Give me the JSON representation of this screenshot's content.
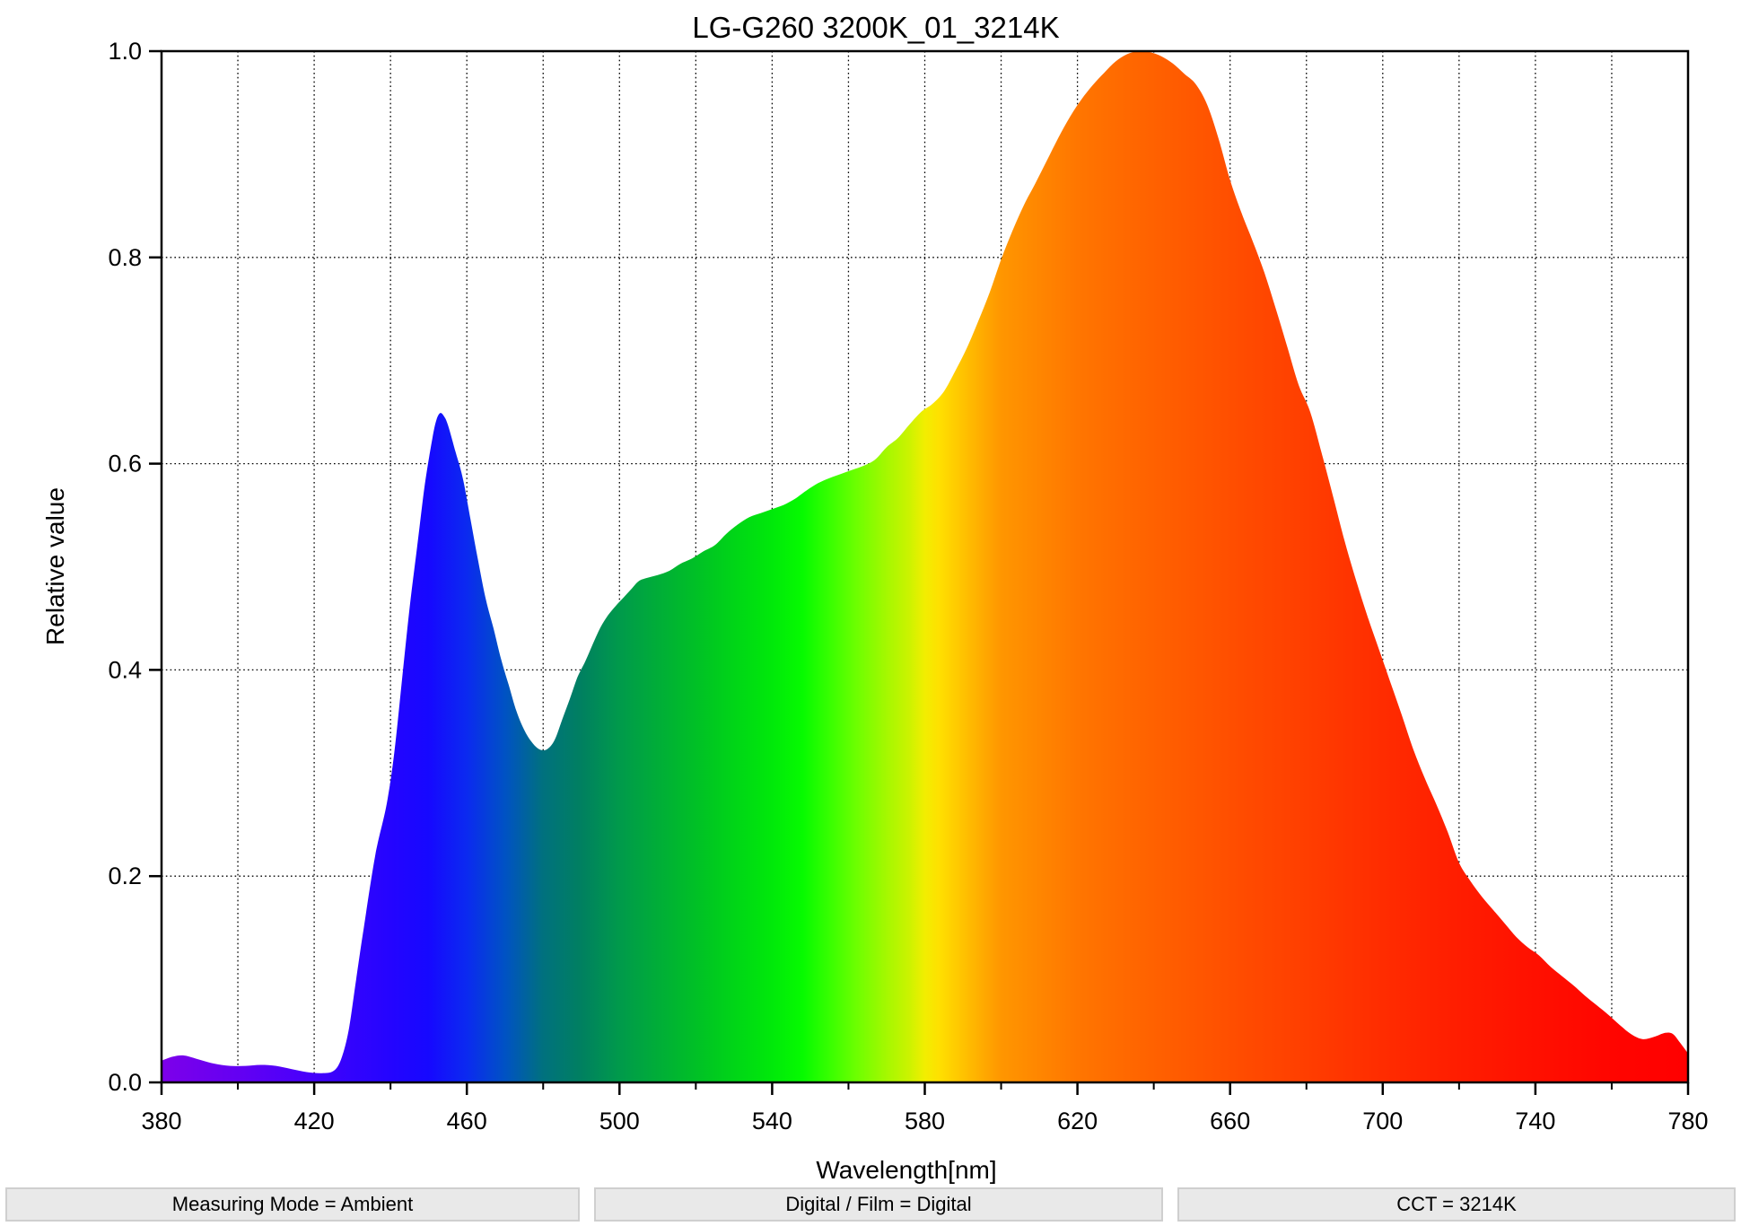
{
  "title": "LG-G260 3200K_01_3214K",
  "status_bars": [
    "Measuring Mode = Ambient",
    "Digital / Film = Digital",
    "CCT = 3214K"
  ],
  "chart_data": {
    "type": "area",
    "title": "LG-G260 3200K_01_3214K",
    "xlabel": "Wavelength[nm]",
    "ylabel": "Relative value",
    "xlim": [
      380,
      780
    ],
    "ylim": [
      0.0,
      1.0
    ],
    "x_major_ticks": [
      380,
      420,
      460,
      500,
      540,
      580,
      620,
      660,
      700,
      740,
      780
    ],
    "x_tick_labels": [
      "380",
      "420",
      "460",
      "500",
      "540",
      "580",
      "620",
      "660",
      "700",
      "740",
      "780"
    ],
    "x_minor_step": 20,
    "y_ticks": [
      0.0,
      0.2,
      0.4,
      0.6,
      0.8,
      1.0
    ],
    "y_tick_labels": [
      "0.0",
      "0.2",
      "0.4",
      "0.6",
      "0.8",
      "1.0"
    ],
    "grid": {
      "x_step": 20,
      "y_step": 0.2,
      "style": "dotted",
      "color": "#000000"
    },
    "legend": "none",
    "points": [
      [
        380,
        0.021
      ],
      [
        383,
        0.025
      ],
      [
        386,
        0.026
      ],
      [
        390,
        0.022
      ],
      [
        394,
        0.018
      ],
      [
        398,
        0.016
      ],
      [
        402,
        0.016
      ],
      [
        406,
        0.017
      ],
      [
        410,
        0.016
      ],
      [
        414,
        0.013
      ],
      [
        418,
        0.01
      ],
      [
        422,
        0.009
      ],
      [
        425,
        0.011
      ],
      [
        427,
        0.022
      ],
      [
        429,
        0.05
      ],
      [
        431,
        0.1
      ],
      [
        433,
        0.15
      ],
      [
        436,
        0.22
      ],
      [
        439,
        0.27
      ],
      [
        441,
        0.32
      ],
      [
        443,
        0.39
      ],
      [
        445,
        0.46
      ],
      [
        447,
        0.52
      ],
      [
        449,
        0.58
      ],
      [
        451,
        0.625
      ],
      [
        452,
        0.642
      ],
      [
        453,
        0.649
      ],
      [
        454,
        0.646
      ],
      [
        455,
        0.638
      ],
      [
        457,
        0.612
      ],
      [
        459,
        0.585
      ],
      [
        461,
        0.545
      ],
      [
        463,
        0.505
      ],
      [
        465,
        0.468
      ],
      [
        467,
        0.44
      ],
      [
        469,
        0.41
      ],
      [
        471,
        0.385
      ],
      [
        473,
        0.36
      ],
      [
        475,
        0.342
      ],
      [
        477,
        0.33
      ],
      [
        479,
        0.323
      ],
      [
        481,
        0.323
      ],
      [
        483,
        0.332
      ],
      [
        485,
        0.352
      ],
      [
        487,
        0.372
      ],
      [
        489,
        0.393
      ],
      [
        491,
        0.408
      ],
      [
        493,
        0.425
      ],
      [
        495,
        0.441
      ],
      [
        497,
        0.453
      ],
      [
        499,
        0.462
      ],
      [
        501,
        0.47
      ],
      [
        503,
        0.478
      ],
      [
        505,
        0.486
      ],
      [
        507,
        0.489
      ],
      [
        510,
        0.492
      ],
      [
        513,
        0.496
      ],
      [
        516,
        0.503
      ],
      [
        519,
        0.508
      ],
      [
        522,
        0.515
      ],
      [
        525,
        0.521
      ],
      [
        528,
        0.532
      ],
      [
        531,
        0.541
      ],
      [
        534,
        0.548
      ],
      [
        537,
        0.552
      ],
      [
        540,
        0.556
      ],
      [
        543,
        0.56
      ],
      [
        546,
        0.566
      ],
      [
        549,
        0.574
      ],
      [
        552,
        0.581
      ],
      [
        555,
        0.586
      ],
      [
        558,
        0.59
      ],
      [
        561,
        0.594
      ],
      [
        564,
        0.598
      ],
      [
        567,
        0.604
      ],
      [
        570,
        0.616
      ],
      [
        573,
        0.625
      ],
      [
        576,
        0.638
      ],
      [
        579,
        0.65
      ],
      [
        582,
        0.658
      ],
      [
        585,
        0.67
      ],
      [
        588,
        0.69
      ],
      [
        591,
        0.712
      ],
      [
        594,
        0.738
      ],
      [
        597,
        0.766
      ],
      [
        600,
        0.798
      ],
      [
        603,
        0.826
      ],
      [
        606,
        0.851
      ],
      [
        609,
        0.872
      ],
      [
        612,
        0.894
      ],
      [
        615,
        0.916
      ],
      [
        618,
        0.936
      ],
      [
        621,
        0.953
      ],
      [
        624,
        0.967
      ],
      [
        627,
        0.979
      ],
      [
        630,
        0.99
      ],
      [
        633,
        0.997
      ],
      [
        636,
        1.0
      ],
      [
        639,
        0.999
      ],
      [
        642,
        0.995
      ],
      [
        645,
        0.988
      ],
      [
        648,
        0.978
      ],
      [
        651,
        0.968
      ],
      [
        654,
        0.948
      ],
      [
        657,
        0.915
      ],
      [
        660,
        0.875
      ],
      [
        663,
        0.843
      ],
      [
        666,
        0.815
      ],
      [
        669,
        0.785
      ],
      [
        672,
        0.75
      ],
      [
        675,
        0.713
      ],
      [
        678,
        0.676
      ],
      [
        681,
        0.65
      ],
      [
        684,
        0.61
      ],
      [
        687,
        0.568
      ],
      [
        690,
        0.525
      ],
      [
        693,
        0.487
      ],
      [
        696,
        0.452
      ],
      [
        699,
        0.42
      ],
      [
        702,
        0.388
      ],
      [
        705,
        0.356
      ],
      [
        708,
        0.323
      ],
      [
        711,
        0.295
      ],
      [
        714,
        0.27
      ],
      [
        717,
        0.243
      ],
      [
        720,
        0.213
      ],
      [
        723,
        0.195
      ],
      [
        726,
        0.18
      ],
      [
        729,
        0.167
      ],
      [
        732,
        0.154
      ],
      [
        735,
        0.141
      ],
      [
        738,
        0.131
      ],
      [
        741,
        0.123
      ],
      [
        744,
        0.112
      ],
      [
        747,
        0.103
      ],
      [
        750,
        0.094
      ],
      [
        753,
        0.084
      ],
      [
        756,
        0.075
      ],
      [
        759,
        0.066
      ],
      [
        762,
        0.056
      ],
      [
        765,
        0.047
      ],
      [
        768,
        0.042
      ],
      [
        771,
        0.044
      ],
      [
        774,
        0.048
      ],
      [
        776,
        0.047
      ],
      [
        778,
        0.038
      ],
      [
        780,
        0.028
      ]
    ],
    "gradient_stops": [
      [
        380,
        "#7d00ea"
      ],
      [
        400,
        "#6400f2"
      ],
      [
        415,
        "#4d00fa"
      ],
      [
        430,
        "#3203fd"
      ],
      [
        440,
        "#2404ff"
      ],
      [
        450,
        "#1608ff"
      ],
      [
        460,
        "#0b2af0"
      ],
      [
        470,
        "#0052c4"
      ],
      [
        480,
        "#00717e"
      ],
      [
        490,
        "#008060"
      ],
      [
        500,
        "#009a4b"
      ],
      [
        510,
        "#00ad38"
      ],
      [
        520,
        "#00c026"
      ],
      [
        530,
        "#00d517"
      ],
      [
        540,
        "#00e90a"
      ],
      [
        548,
        "#06fb00"
      ],
      [
        555,
        "#37ff00"
      ],
      [
        562,
        "#6cff00"
      ],
      [
        570,
        "#a5f800"
      ],
      [
        576,
        "#ccf300"
      ],
      [
        580,
        "#f2ee00"
      ],
      [
        584,
        "#ffdf00"
      ],
      [
        588,
        "#ffcc00"
      ],
      [
        592,
        "#ffb900"
      ],
      [
        596,
        "#ffa700"
      ],
      [
        600,
        "#ff9600"
      ],
      [
        610,
        "#ff8600"
      ],
      [
        620,
        "#ff7600"
      ],
      [
        635,
        "#ff6600"
      ],
      [
        650,
        "#ff5800"
      ],
      [
        665,
        "#ff4a00"
      ],
      [
        680,
        "#ff3e00"
      ],
      [
        700,
        "#ff2c00"
      ],
      [
        720,
        "#ff1d00"
      ],
      [
        740,
        "#ff1000"
      ],
      [
        760,
        "#ff0500"
      ],
      [
        780,
        "#ff0000"
      ]
    ]
  }
}
